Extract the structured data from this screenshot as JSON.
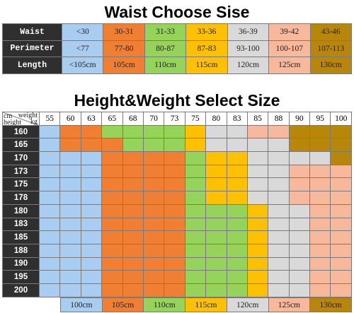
{
  "waist": {
    "title": "Waist Choose Sise",
    "rows": [
      {
        "label": "Waist",
        "values": [
          "<30",
          "30-31",
          "31-33",
          "33-36",
          "36-39",
          "39-42",
          "43-46"
        ]
      },
      {
        "label": "Perimeter",
        "values": [
          "<77",
          "77-80",
          "80-87",
          "87-83",
          "93-100",
          "100-107",
          "107-113"
        ]
      },
      {
        "label": "Length",
        "values": [
          "<105cm",
          "105cm",
          "110cm",
          "115cm",
          "120cm",
          "125cm",
          "130cm"
        ]
      }
    ]
  },
  "size_colors": [
    "#a9cdf0",
    "#f07f34",
    "#95d35a",
    "#fdc101",
    "#d9d9d9",
    "#f7b89b",
    "#b8860b"
  ],
  "size_chart": {
    "title": "Height&Weight Select Size",
    "corner": {
      "top_right": "weight",
      "right": "kg",
      "left_top": "cm",
      "left_bottom": "height"
    },
    "weights": [
      "55",
      "60",
      "63",
      "65",
      "68",
      "70",
      "73",
      "75",
      "80",
      "83",
      "85",
      "88",
      "90",
      "95",
      "100"
    ],
    "heights": [
      "160",
      "165",
      "170",
      "173",
      "175",
      "178",
      "180",
      "183",
      "185",
      "188",
      "190",
      "195",
      "200"
    ],
    "grid": [
      [
        0,
        1,
        1,
        2,
        2,
        2,
        2,
        3,
        4,
        4,
        5,
        5,
        6,
        6,
        6
      ],
      [
        0,
        1,
        1,
        1,
        2,
        2,
        2,
        3,
        4,
        4,
        4,
        4,
        6,
        6,
        6
      ],
      [
        0,
        0,
        0,
        1,
        1,
        1,
        1,
        2,
        3,
        3,
        4,
        4,
        4,
        4,
        6
      ],
      [
        0,
        0,
        0,
        1,
        1,
        1,
        1,
        2,
        3,
        3,
        4,
        4,
        5,
        5,
        5
      ],
      [
        0,
        0,
        0,
        1,
        1,
        1,
        1,
        2,
        3,
        3,
        4,
        4,
        5,
        5,
        5
      ],
      [
        0,
        0,
        0,
        1,
        1,
        1,
        1,
        2,
        3,
        3,
        4,
        4,
        5,
        5,
        5
      ],
      [
        0,
        0,
        0,
        1,
        1,
        1,
        1,
        2,
        2,
        2,
        3,
        4,
        4,
        5,
        5
      ],
      [
        0,
        0,
        0,
        1,
        1,
        1,
        1,
        2,
        2,
        2,
        3,
        4,
        4,
        5,
        5
      ],
      [
        0,
        0,
        0,
        1,
        1,
        1,
        1,
        2,
        2,
        2,
        3,
        4,
        4,
        5,
        5
      ],
      [
        0,
        0,
        0,
        1,
        1,
        1,
        1,
        2,
        2,
        2,
        3,
        4,
        4,
        5,
        5
      ],
      [
        0,
        0,
        0,
        1,
        1,
        1,
        1,
        2,
        2,
        2,
        3,
        4,
        4,
        5,
        5
      ],
      [
        0,
        0,
        0,
        1,
        1,
        1,
        1,
        2,
        2,
        2,
        3,
        4,
        4,
        5,
        5
      ],
      [
        0,
        0,
        0,
        1,
        1,
        1,
        1,
        2,
        2,
        2,
        3,
        4,
        4,
        5,
        5
      ]
    ]
  },
  "legend": [
    "100cm",
    "105cm",
    "110cm",
    "115cm",
    "120cm",
    "125cm",
    "130cm"
  ]
}
